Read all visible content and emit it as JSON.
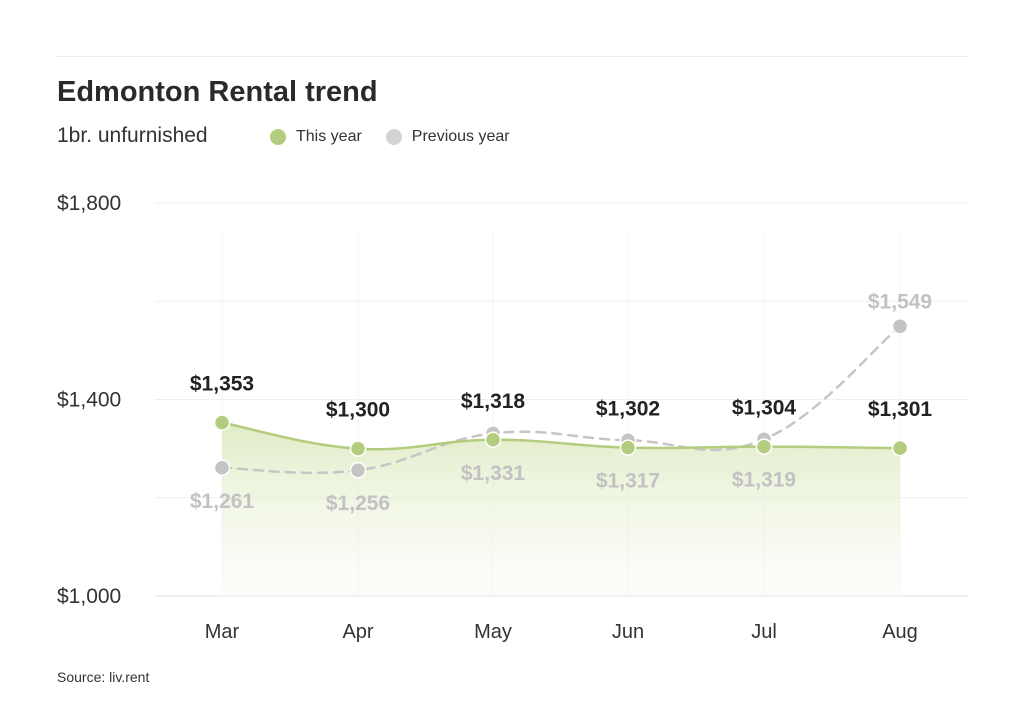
{
  "header": {
    "title": "Edmonton Rental trend",
    "subtitle": "1br. unfurnished"
  },
  "legend": [
    {
      "label": "This year",
      "color": "#b4cc7e"
    },
    {
      "label": "Previous year",
      "color": "#d3d3d3"
    }
  ],
  "source": "Source: liv.rent",
  "chart_data": {
    "type": "line",
    "title": "Edmonton Rental trend",
    "subtitle": "1br. unfurnished",
    "categories": [
      "Mar",
      "Apr",
      "May",
      "Jun",
      "Jul",
      "Aug"
    ],
    "series": [
      {
        "name": "This year",
        "values": [
          1353,
          1300,
          1318,
          1302,
          1304,
          1301
        ],
        "labels": [
          "$1,353",
          "$1,300",
          "$1,318",
          "$1,302",
          "$1,304",
          "$1,301"
        ],
        "color": "#b4cc7e",
        "style": "solid-area"
      },
      {
        "name": "Previous year",
        "values": [
          1261,
          1256,
          1331,
          1317,
          1319,
          1549
        ],
        "labels": [
          "$1,261",
          "$1,256",
          "$1,331",
          "$1,317",
          "$1,319",
          "$1,549"
        ],
        "color": "#c4c4c4",
        "style": "dashed"
      }
    ],
    "yticks": [
      {
        "value": 1800,
        "label": "$1,800"
      },
      {
        "value": 1400,
        "label": "$1,400"
      },
      {
        "value": 1000,
        "label": "$1,000"
      }
    ],
    "ylim": [
      1000,
      1800
    ],
    "grid": true,
    "legend_position": "top-left"
  }
}
